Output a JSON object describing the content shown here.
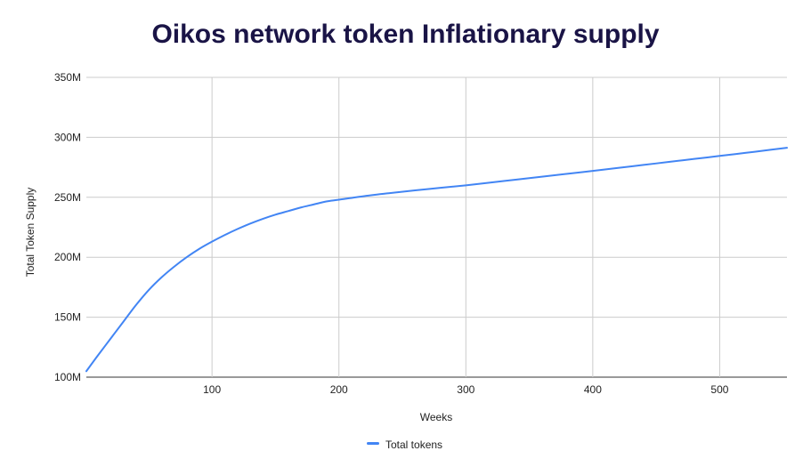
{
  "chart_data": {
    "type": "line",
    "title": "Oikos network token Inflationary supply",
    "xlabel": "Weeks",
    "ylabel": "Total Token Supply",
    "xlim": [
      1,
      553
    ],
    "ylim": [
      100000000,
      350000000
    ],
    "x_ticks": [
      100,
      200,
      300,
      400,
      500
    ],
    "x_tick_labels": [
      "100",
      "200",
      "300",
      "400",
      "500"
    ],
    "y_ticks": [
      100000000,
      150000000,
      200000000,
      250000000,
      300000000,
      350000000
    ],
    "y_tick_labels": [
      "100M",
      "150M",
      "200M",
      "250M",
      "300M",
      "350M"
    ],
    "grid": true,
    "legend_position": "bottom",
    "series": [
      {
        "name": "Total tokens",
        "color": "#4285f4",
        "x": [
          1,
          10,
          20,
          30,
          40,
          50,
          60,
          70,
          80,
          90,
          100,
          110,
          120,
          130,
          140,
          150,
          160,
          170,
          180,
          190,
          200,
          220,
          240,
          260,
          280,
          300,
          320,
          340,
          360,
          380,
          400,
          420,
          440,
          460,
          480,
          500,
          520,
          540,
          553
        ],
        "y": [
          105000000,
          118000000,
          132000000,
          146000000,
          160000000,
          172500000,
          183000000,
          192000000,
          200000000,
          207000000,
          213000000,
          218500000,
          223500000,
          228000000,
          232000000,
          235500000,
          238500000,
          241500000,
          244000000,
          246500000,
          248000000,
          251000000,
          253500000,
          255800000,
          257900000,
          260000000,
          262400000,
          264800000,
          267200000,
          269600000,
          272000000,
          274500000,
          277000000,
          279500000,
          282000000,
          284500000,
          287000000,
          289600000,
          291300000
        ]
      }
    ]
  }
}
